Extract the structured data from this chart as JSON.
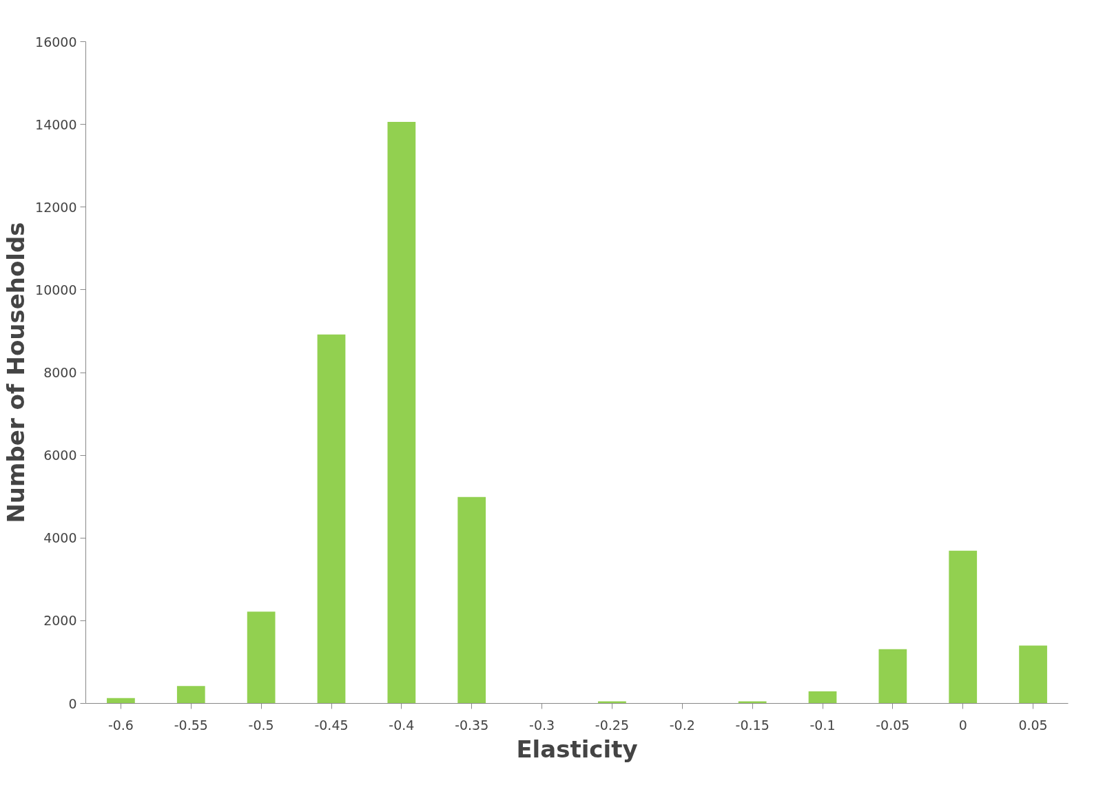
{
  "chart_data": {
    "type": "bar",
    "xlabel": "Elasticity",
    "ylabel": "Number of Households",
    "categories": [
      "-0.6",
      "-0.55",
      "-0.5",
      "-0.45",
      "-0.4",
      "-0.35",
      "-0.3",
      "-0.25",
      "-0.2",
      "-0.15",
      "-0.1",
      "-0.05",
      "0",
      "0.05"
    ],
    "values": [
      130,
      420,
      2220,
      8920,
      14060,
      4990,
      0,
      50,
      0,
      50,
      290,
      1310,
      3690,
      1400
    ],
    "color": "#92d050",
    "ylim": [
      0,
      16000
    ],
    "yticks": [
      0,
      2000,
      4000,
      6000,
      8000,
      10000,
      12000,
      14000,
      16000
    ],
    "grid": false
  }
}
